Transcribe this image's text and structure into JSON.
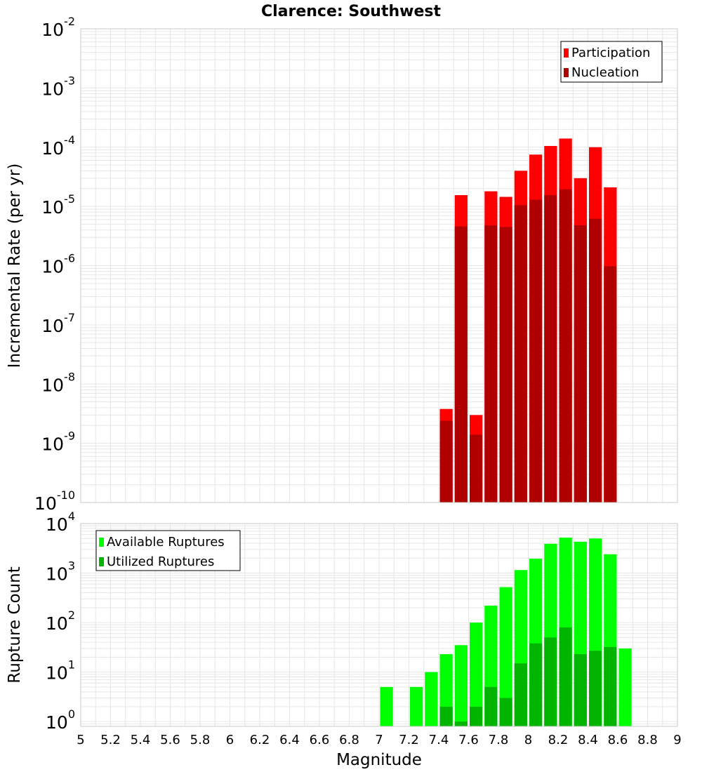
{
  "title": "Clarence: Southwest",
  "xlabel": "Magnitude",
  "x_ticks": [
    "5",
    "5.2",
    "5.4",
    "5.6",
    "5.8",
    "6",
    "6.2",
    "6.4",
    "6.6",
    "6.8",
    "7",
    "7.2",
    "7.4",
    "7.6",
    "7.8",
    "8",
    "8.2",
    "8.4",
    "8.6",
    "8.8",
    "9"
  ],
  "colors": {
    "participation": "#ff0000",
    "nucleation": "#b00000",
    "available": "#00ff00",
    "utilized": "#00b400",
    "grid": "#e6e6e6",
    "frame": "#c8c8c8"
  },
  "chart_data": [
    {
      "type": "bar",
      "panel": "top",
      "ylabel": "Incremental Rate (per yr)",
      "y_scale": "log",
      "ylim": [
        1e-10,
        0.01
      ],
      "xlim": [
        5,
        9
      ],
      "y_tick_exponents": [
        -10,
        -9,
        -8,
        -7,
        -6,
        -5,
        -4,
        -3,
        -2
      ],
      "legend": {
        "placement": "top-right",
        "entries": [
          "Participation",
          "Nucleation"
        ]
      },
      "bar_width": 0.1,
      "x": [
        7.45,
        7.55,
        7.65,
        7.75,
        7.85,
        7.95,
        8.05,
        8.15,
        8.25,
        8.35,
        8.45,
        8.55
      ],
      "series": [
        {
          "name": "Participation",
          "values": [
            3.8e-09,
            1.55e-05,
            3e-09,
            1.8e-05,
            1.45e-05,
            4e-05,
            7.5e-05,
            0.000105,
            0.00014,
            3e-05,
            0.0001,
            2.1e-05
          ]
        },
        {
          "name": "Nucleation",
          "values": [
            2.4e-09,
            4.6e-06,
            1.4e-09,
            4.8e-06,
            4.5e-06,
            1.05e-05,
            1.3e-05,
            1.55e-05,
            1.95e-05,
            4.8e-06,
            6.2e-06,
            9.8e-07
          ]
        }
      ]
    },
    {
      "type": "bar",
      "panel": "bottom",
      "ylabel": "Rupture Count",
      "y_scale": "log",
      "ylim": [
        0.8,
        10000
      ],
      "xlim": [
        5,
        9
      ],
      "y_tick_exponents": [
        0,
        1,
        2,
        3,
        4
      ],
      "legend": {
        "placement": "top-left",
        "entries": [
          "Available Ruptures",
          "Utilized Ruptures"
        ]
      },
      "bar_width": 0.1,
      "x": [
        7.05,
        7.25,
        7.35,
        7.45,
        7.55,
        7.65,
        7.75,
        7.85,
        7.95,
        8.05,
        8.15,
        8.25,
        8.35,
        8.45,
        8.55,
        8.65
      ],
      "series": [
        {
          "name": "Available Ruptures",
          "values": [
            5,
            5,
            10,
            23,
            35,
            100,
            220,
            520,
            1150,
            1950,
            3900,
            5200,
            4300,
            5000,
            2400,
            30
          ]
        },
        {
          "name": "Utilized Ruptures",
          "values": [
            null,
            null,
            null,
            2,
            1,
            2,
            5,
            3,
            15,
            38,
            50,
            80,
            23,
            27,
            32,
            null
          ]
        }
      ]
    }
  ]
}
